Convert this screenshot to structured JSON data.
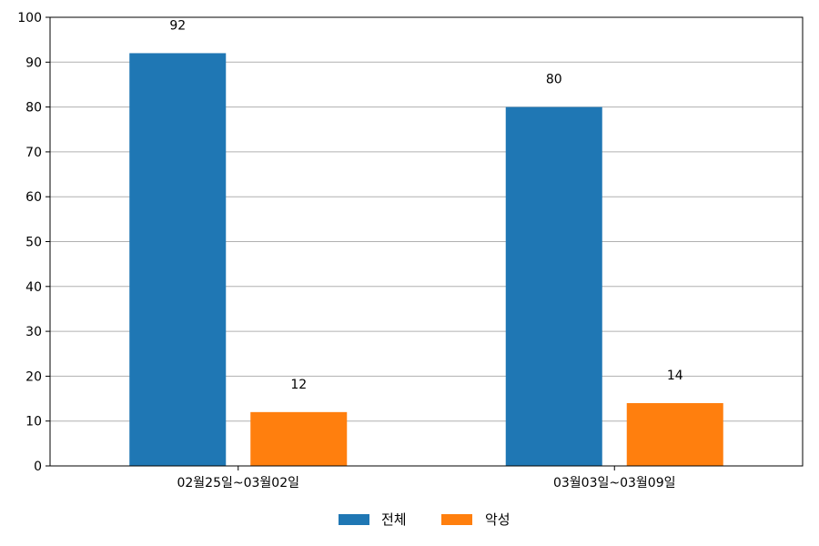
{
  "chart_data": {
    "type": "bar",
    "title": "",
    "xlabel": "",
    "ylabel": "",
    "categories": [
      "02월25일~03월02일",
      "03월03일~03월09일"
    ],
    "series": [
      {
        "name": "전체",
        "values": [
          92,
          80
        ],
        "color": "#1f77b4"
      },
      {
        "name": "악성",
        "values": [
          12,
          14
        ],
        "color": "#ff7f0e"
      }
    ],
    "ylim": [
      0,
      100
    ],
    "yticks": [
      0,
      10,
      20,
      30,
      40,
      50,
      60,
      70,
      80,
      90,
      100
    ],
    "grid": "horizontal",
    "legend_position": "bottom-center",
    "data_labels": true
  }
}
